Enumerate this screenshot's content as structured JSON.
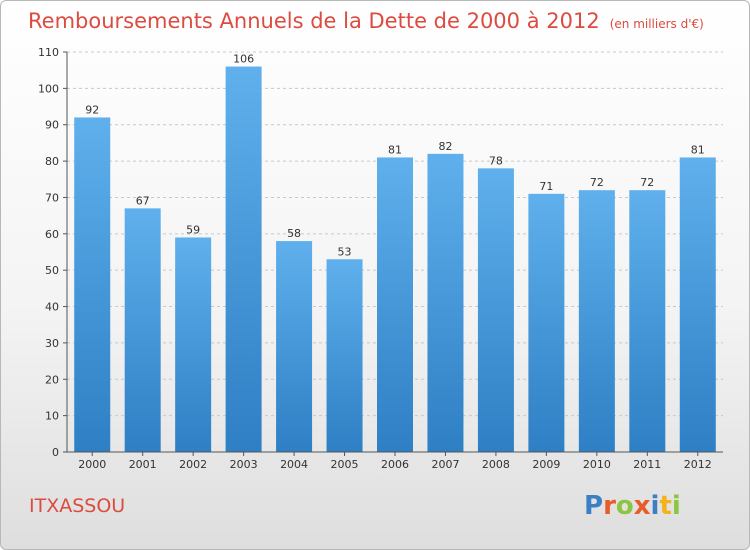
{
  "chart_data": {
    "type": "bar",
    "title": "Remboursements Annuels de la Dette de 2000 à 2012",
    "unit": "(en milliers d'€)",
    "categories": [
      "2000",
      "2001",
      "2002",
      "2003",
      "2004",
      "2005",
      "2006",
      "2007",
      "2008",
      "2009",
      "2010",
      "2011",
      "2012"
    ],
    "values": [
      92,
      67,
      59,
      106,
      58,
      53,
      81,
      82,
      78,
      71,
      72,
      72,
      81
    ],
    "ylim": [
      0,
      110
    ],
    "yticks": [
      0,
      10,
      20,
      30,
      40,
      50,
      60,
      70,
      80,
      90,
      100,
      110
    ],
    "grid": true,
    "bar_color": "#3a8fd6"
  },
  "commune": "ITXASSOU",
  "logo": {
    "letters": [
      "P",
      "r",
      "o",
      "x",
      "i",
      "t",
      "i"
    ],
    "colors": [
      "#3d7fc4",
      "#e85b2a",
      "#8cc63f",
      "#e85b2a",
      "#3d7fc4",
      "#f2b31b",
      "#8cc63f"
    ]
  }
}
